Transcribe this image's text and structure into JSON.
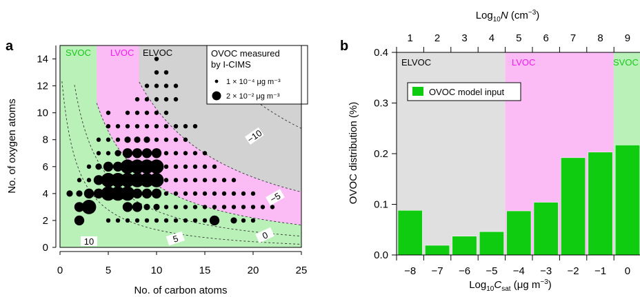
{
  "colors": {
    "svoc": "#b9f1b9",
    "lvoc": "#fbbcf5",
    "elvoc": "#d2d2d2",
    "elvoc_b": "#e0e0e0",
    "bar": "#10cc10",
    "svoc_text": "#19c719",
    "lvoc_text": "#f01aee",
    "elvoc_text": "#000000",
    "points": "#000000"
  },
  "chart_data": [
    {
      "panel": "a",
      "type": "scatter",
      "xlabel": "No. of carbon atoms",
      "ylabel": "No. of oxygen atoms",
      "xlim": [
        0,
        25
      ],
      "ylim": [
        0,
        15
      ],
      "xticks": [
        0,
        5,
        10,
        15,
        20,
        25
      ],
      "yticks": [
        0,
        2,
        4,
        6,
        8,
        10,
        12,
        14
      ],
      "regions": [
        {
          "label": "SVOC",
          "color_key": "svoc_text"
        },
        {
          "label": "LVOC",
          "color_key": "lvoc_text"
        },
        {
          "label": "ELVOC",
          "color_key": "elvoc_text"
        }
      ],
      "contour_labels": [
        "10",
        "5",
        "0",
        "−5",
        "−10"
      ],
      "legend": {
        "title": [
          "OVOC measured",
          "by I-CIMS"
        ],
        "entries": [
          {
            "text": "1 × 10⁻⁴ μg m⁻³",
            "size": "small"
          },
          {
            "text": "2 × 10⁻² μg m⁻³",
            "size": "large"
          }
        ]
      },
      "points": [
        {
          "x": 2,
          "y": 2,
          "s": 3
        },
        {
          "x": 3,
          "y": 3,
          "s": 4
        },
        {
          "x": 2,
          "y": 3,
          "s": 3
        },
        {
          "x": 1,
          "y": 4,
          "s": 2
        },
        {
          "x": 2,
          "y": 4,
          "s": 2
        },
        {
          "x": 3,
          "y": 4,
          "s": 3
        },
        {
          "x": 4,
          "y": 4,
          "s": 3
        },
        {
          "x": 5,
          "y": 4,
          "s": 4
        },
        {
          "x": 6,
          "y": 4,
          "s": 4
        },
        {
          "x": 7,
          "y": 4,
          "s": 4
        },
        {
          "x": 8,
          "y": 4,
          "s": 3
        },
        {
          "x": 9,
          "y": 4,
          "s": 3
        },
        {
          "x": 10,
          "y": 4,
          "s": 3
        },
        {
          "x": 4,
          "y": 5,
          "s": 3
        },
        {
          "x": 5,
          "y": 5,
          "s": 4
        },
        {
          "x": 6,
          "y": 5,
          "s": 4
        },
        {
          "x": 7,
          "y": 5,
          "s": 4
        },
        {
          "x": 8,
          "y": 5,
          "s": 4
        },
        {
          "x": 9,
          "y": 5,
          "s": 4
        },
        {
          "x": 10,
          "y": 5,
          "s": 4
        },
        {
          "x": 5,
          "y": 6,
          "s": 3
        },
        {
          "x": 6,
          "y": 6,
          "s": 3
        },
        {
          "x": 7,
          "y": 6,
          "s": 4
        },
        {
          "x": 8,
          "y": 6,
          "s": 4
        },
        {
          "x": 9,
          "y": 6,
          "s": 4
        },
        {
          "x": 10,
          "y": 6,
          "s": 4
        },
        {
          "x": 7,
          "y": 7,
          "s": 3
        },
        {
          "x": 8,
          "y": 7,
          "s": 3
        },
        {
          "x": 9,
          "y": 7,
          "s": 3
        },
        {
          "x": 10,
          "y": 7,
          "s": 3
        },
        {
          "x": 7,
          "y": 3,
          "s": 3
        },
        {
          "x": 8,
          "y": 3,
          "s": 3
        },
        {
          "x": 9,
          "y": 3,
          "s": 2
        },
        {
          "x": 10,
          "y": 3,
          "s": 2
        },
        {
          "x": 16,
          "y": 2,
          "s": 3
        },
        {
          "x": 18,
          "y": 2,
          "s": 2
        },
        {
          "x": 2,
          "y": 5,
          "s": 1
        },
        {
          "x": 3,
          "y": 5,
          "s": 1
        },
        {
          "x": 3,
          "y": 6,
          "s": 1
        },
        {
          "x": 4,
          "y": 6,
          "s": 2
        },
        {
          "x": 4,
          "y": 7,
          "s": 1
        },
        {
          "x": 5,
          "y": 7,
          "s": 1
        },
        {
          "x": 6,
          "y": 7,
          "s": 2
        },
        {
          "x": 4,
          "y": 8,
          "s": 1
        },
        {
          "x": 5,
          "y": 8,
          "s": 1
        },
        {
          "x": 6,
          "y": 8,
          "s": 1
        },
        {
          "x": 7,
          "y": 8,
          "s": 2
        },
        {
          "x": 8,
          "y": 8,
          "s": 2
        },
        {
          "x": 9,
          "y": 8,
          "s": 2
        },
        {
          "x": 10,
          "y": 8,
          "s": 1
        },
        {
          "x": 5,
          "y": 9,
          "s": 1
        },
        {
          "x": 6,
          "y": 9,
          "s": 1
        },
        {
          "x": 7,
          "y": 9,
          "s": 1
        },
        {
          "x": 8,
          "y": 9,
          "s": 1
        },
        {
          "x": 9,
          "y": 9,
          "s": 1
        },
        {
          "x": 10,
          "y": 9,
          "s": 1
        },
        {
          "x": 11,
          "y": 9,
          "s": 1
        },
        {
          "x": 12,
          "y": 9,
          "s": 1
        },
        {
          "x": 13,
          "y": 9,
          "s": 1
        },
        {
          "x": 14,
          "y": 9,
          "s": 1
        },
        {
          "x": 5,
          "y": 10,
          "s": 1
        },
        {
          "x": 7,
          "y": 10,
          "s": 1
        },
        {
          "x": 8,
          "y": 10,
          "s": 1
        },
        {
          "x": 9,
          "y": 10,
          "s": 1
        },
        {
          "x": 10,
          "y": 10,
          "s": 1
        },
        {
          "x": 11,
          "y": 10,
          "s": 1
        },
        {
          "x": 8,
          "y": 11,
          "s": 1
        },
        {
          "x": 9,
          "y": 11,
          "s": 1
        },
        {
          "x": 10,
          "y": 11,
          "s": 1
        },
        {
          "x": 11,
          "y": 11,
          "s": 1
        },
        {
          "x": 12,
          "y": 11,
          "s": 1
        },
        {
          "x": 9,
          "y": 12,
          "s": 1
        },
        {
          "x": 10,
          "y": 12,
          "s": 1
        },
        {
          "x": 11,
          "y": 12,
          "s": 1
        },
        {
          "x": 12,
          "y": 12,
          "s": 1
        },
        {
          "x": 10,
          "y": 13,
          "s": 1
        },
        {
          "x": 11,
          "y": 13,
          "s": 1
        },
        {
          "x": 10,
          "y": 14,
          "s": 1
        },
        {
          "x": 11,
          "y": 8,
          "s": 1
        },
        {
          "x": 12,
          "y": 8,
          "s": 1
        },
        {
          "x": 13,
          "y": 8,
          "s": 1
        },
        {
          "x": 11,
          "y": 7,
          "s": 1
        },
        {
          "x": 12,
          "y": 7,
          "s": 1
        },
        {
          "x": 13,
          "y": 7,
          "s": 1
        },
        {
          "x": 14,
          "y": 7,
          "s": 1
        },
        {
          "x": 15,
          "y": 7,
          "s": 1
        },
        {
          "x": 11,
          "y": 6,
          "s": 1
        },
        {
          "x": 12,
          "y": 6,
          "s": 1
        },
        {
          "x": 13,
          "y": 6,
          "s": 1
        },
        {
          "x": 14,
          "y": 6,
          "s": 1
        },
        {
          "x": 15,
          "y": 6,
          "s": 1
        },
        {
          "x": 16,
          "y": 6,
          "s": 1
        },
        {
          "x": 11,
          "y": 5,
          "s": 1
        },
        {
          "x": 12,
          "y": 5,
          "s": 1
        },
        {
          "x": 13,
          "y": 5,
          "s": 1
        },
        {
          "x": 14,
          "y": 5,
          "s": 1
        },
        {
          "x": 15,
          "y": 5,
          "s": 1
        },
        {
          "x": 16,
          "y": 5,
          "s": 1
        },
        {
          "x": 17,
          "y": 5,
          "s": 1
        },
        {
          "x": 18,
          "y": 5,
          "s": 1
        },
        {
          "x": 11,
          "y": 4,
          "s": 1
        },
        {
          "x": 12,
          "y": 4,
          "s": 1
        },
        {
          "x": 13,
          "y": 4,
          "s": 1
        },
        {
          "x": 14,
          "y": 4,
          "s": 1
        },
        {
          "x": 15,
          "y": 4,
          "s": 1
        },
        {
          "x": 16,
          "y": 4,
          "s": 1
        },
        {
          "x": 17,
          "y": 4,
          "s": 1
        },
        {
          "x": 18,
          "y": 4,
          "s": 1
        },
        {
          "x": 19,
          "y": 4,
          "s": 1
        },
        {
          "x": 20,
          "y": 4,
          "s": 1
        },
        {
          "x": 11,
          "y": 3,
          "s": 1
        },
        {
          "x": 12,
          "y": 3,
          "s": 1
        },
        {
          "x": 13,
          "y": 3,
          "s": 1
        },
        {
          "x": 14,
          "y": 3,
          "s": 1
        },
        {
          "x": 15,
          "y": 3,
          "s": 1
        },
        {
          "x": 16,
          "y": 3,
          "s": 1
        },
        {
          "x": 17,
          "y": 3,
          "s": 1
        },
        {
          "x": 18,
          "y": 3,
          "s": 1
        },
        {
          "x": 19,
          "y": 3,
          "s": 1
        },
        {
          "x": 20,
          "y": 3,
          "s": 1
        },
        {
          "x": 21,
          "y": 3,
          "s": 1
        },
        {
          "x": 22,
          "y": 3,
          "s": 1
        },
        {
          "x": 5,
          "y": 2,
          "s": 1
        },
        {
          "x": 6,
          "y": 2,
          "s": 1
        },
        {
          "x": 7,
          "y": 2,
          "s": 1
        },
        {
          "x": 8,
          "y": 2,
          "s": 1
        },
        {
          "x": 9,
          "y": 2,
          "s": 1
        },
        {
          "x": 10,
          "y": 2,
          "s": 1
        },
        {
          "x": 11,
          "y": 2,
          "s": 1
        },
        {
          "x": 12,
          "y": 2,
          "s": 1
        },
        {
          "x": 13,
          "y": 2,
          "s": 1
        },
        {
          "x": 14,
          "y": 2,
          "s": 1
        },
        {
          "x": 15,
          "y": 2,
          "s": 1
        },
        {
          "x": 19,
          "y": 2,
          "s": 1
        },
        {
          "x": 20,
          "y": 2,
          "s": 1
        }
      ]
    },
    {
      "panel": "b",
      "type": "bar",
      "xlabel": "Log₁₀C_sat (μg m⁻³)",
      "ylabel": "OVOC distribution (%)",
      "top_xlabel": "Log₁₀N (cm⁻³)",
      "categories": [
        "−8",
        "−7",
        "−6",
        "−5",
        "−4",
        "−3",
        "−2",
        "−1",
        "0"
      ],
      "top_categories": [
        "1",
        "2",
        "3",
        "4",
        "5",
        "6",
        "7",
        "8",
        "9"
      ],
      "values": [
        0.088,
        0.019,
        0.037,
        0.046,
        0.087,
        0.104,
        0.192,
        0.203,
        0.217
      ],
      "ylim": [
        0,
        0.4
      ],
      "yticks": [
        "0.0",
        "0.1",
        "0.2",
        "0.3",
        "0.4"
      ],
      "series": [
        {
          "name": "OVOC model input"
        }
      ],
      "regions": [
        {
          "label": "ELVOC",
          "color_key": "elvoc_text"
        },
        {
          "label": "LVOC",
          "color_key": "lvoc_text"
        },
        {
          "label": "SVOC",
          "color_key": "svoc_text"
        }
      ]
    }
  ]
}
